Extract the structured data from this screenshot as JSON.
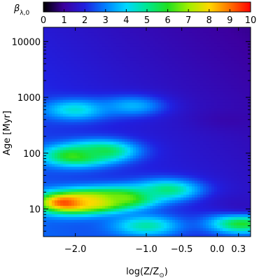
{
  "chart_data": {
    "type": "heatmap",
    "colorbar": {
      "label": "β",
      "label_sub": "λ,0",
      "ticks": [
        "0",
        "1",
        "2",
        "3",
        "4",
        "5",
        "6",
        "7",
        "8",
        "9",
        "10"
      ],
      "range": [
        0,
        10
      ]
    },
    "xaxis": {
      "label_text": "log(Z/Z",
      "label_symbol": "⊙",
      "label_close": ")",
      "range": [
        -2.45,
        0.47
      ],
      "ticks": [
        {
          "value": -2.0,
          "label": "−2.0"
        },
        {
          "value": -1.0,
          "label": "−1.0"
        },
        {
          "value": -0.5,
          "label": "−0.5"
        },
        {
          "value": 0.0,
          "label": "0.0"
        },
        {
          "value": 0.3,
          "label": "0.3"
        }
      ]
    },
    "yaxis": {
      "label": "Age [Myr]",
      "scale": "log",
      "range": [
        3.2,
        18000
      ],
      "ticks": [
        {
          "value": 10,
          "label": "10"
        },
        {
          "value": 100,
          "label": "100"
        },
        {
          "value": 1000,
          "label": "1000"
        },
        {
          "value": 10000,
          "label": "10000"
        }
      ]
    },
    "features": [
      {
        "z": -2.1,
        "age": 13,
        "beta": 10
      },
      {
        "z": -1.7,
        "age": 14,
        "beta": 8.5
      },
      {
        "z": -1.3,
        "age": 16,
        "beta": 6.8
      },
      {
        "z": -0.7,
        "age": 22,
        "beta": 5.2
      },
      {
        "z": -2.0,
        "age": 90,
        "beta": 6.5
      },
      {
        "z": -1.6,
        "age": 110,
        "beta": 5.6
      },
      {
        "z": -2.0,
        "age": 600,
        "beta": 4.4
      },
      {
        "z": -1.2,
        "age": 700,
        "beta": 3.6
      },
      {
        "z": 0.35,
        "age": 5.5,
        "beta": 6.0
      },
      {
        "z": -1.0,
        "age": 5,
        "beta": 4.8
      },
      {
        "z": 0.2,
        "age": 400,
        "beta": 1.2
      },
      {
        "z": 0.35,
        "age": 12,
        "beta": 1.5
      }
    ]
  }
}
